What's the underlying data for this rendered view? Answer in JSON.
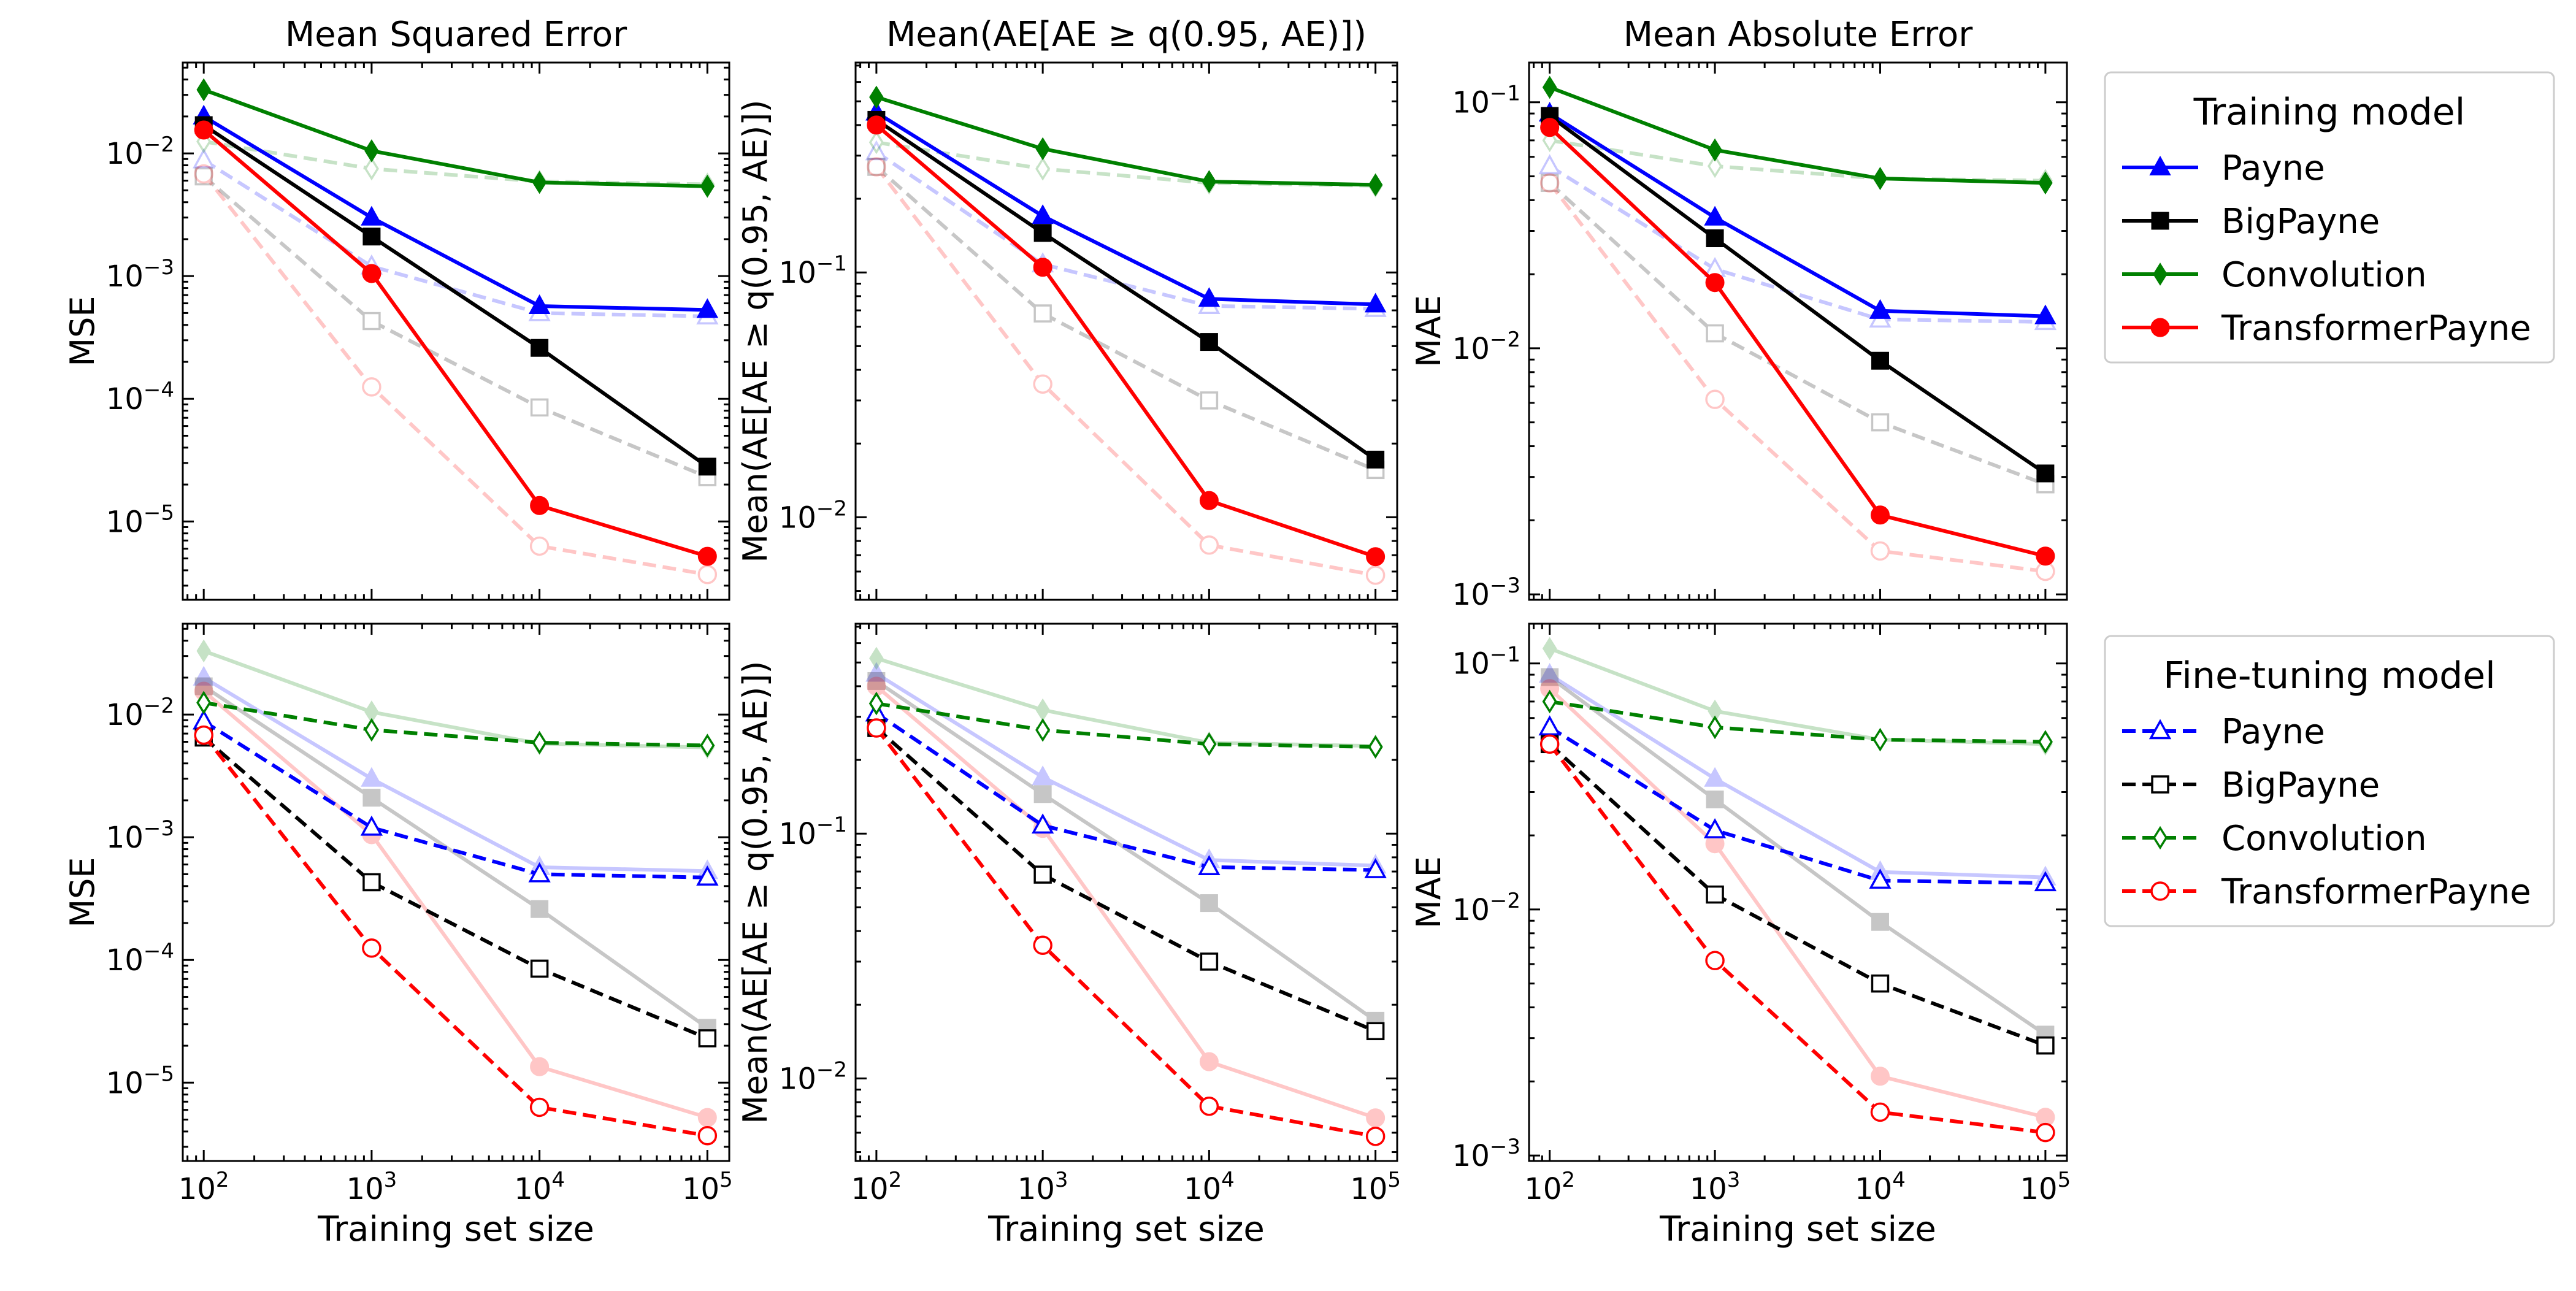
{
  "chart_data": {
    "type": "line",
    "xscale": "log",
    "yscale": "log",
    "x": [
      100,
      1000,
      10000,
      100000
    ],
    "xlim": [
      75,
      135000
    ],
    "xtick_labels": [
      "10^2",
      "10^3",
      "10^4",
      "10^5"
    ],
    "xlabel": "Training set size",
    "colors": {
      "Payne": "#0000ff",
      "BigPayne": "#000000",
      "Convolution": "#008000",
      "TransformerPayne": "#ff0000"
    },
    "markers": {
      "Payne": "triangle",
      "BigPayne": "square",
      "Convolution": "diamond",
      "TransformerPayne": "circle"
    },
    "legends": [
      {
        "title": "Training model",
        "style": "solid-filled",
        "entries": [
          "Payne",
          "BigPayne",
          "Convolution",
          "TransformerPayne"
        ]
      },
      {
        "title": "Fine-tuning model",
        "style": "dashed-open",
        "entries": [
          "Payne",
          "BigPayne",
          "Convolution",
          "TransformerPayne"
        ]
      }
    ],
    "metrics": [
      {
        "title": "Mean Squared Error",
        "ylabel": "MSE",
        "ylim": [
          2.3e-06,
          0.055
        ],
        "yticks": [
          {
            "v": 0.01,
            "label": "10^-2"
          },
          {
            "v": 0.001,
            "label": "10^-3"
          },
          {
            "v": 0.0001,
            "label": "10^-4"
          },
          {
            "v": 1e-05,
            "label": "10^-5"
          }
        ],
        "training": {
          "Payne": [
            0.02,
            0.003,
            0.00057,
            0.00053
          ],
          "BigPayne": [
            0.017,
            0.0021,
            0.00026,
            2.8e-05
          ],
          "Convolution": [
            0.033,
            0.0105,
            0.0058,
            0.0054
          ],
          "TransformerPayne": [
            0.0155,
            0.00105,
            1.35e-05,
            5.2e-06
          ]
        },
        "finetuning": {
          "Payne": [
            0.0088,
            0.0012,
            0.0005,
            0.00047
          ],
          "BigPayne": [
            0.0065,
            0.00043,
            8.5e-05,
            2.3e-05
          ],
          "Convolution": [
            0.0125,
            0.0075,
            0.0059,
            0.0056
          ],
          "TransformerPayne": [
            0.0068,
            0.000125,
            6.3e-06,
            3.7e-06
          ]
        }
      },
      {
        "title": "Mean(AE[AE ≥ q(0.95, AE)])",
        "ylabel": "Mean(AE[AE ≥ q(0.95, AE)])",
        "ylim": [
          0.0046,
          0.72
        ],
        "yticks": [
          {
            "v": 0.1,
            "label": "10^-1"
          },
          {
            "v": 0.01,
            "label": "10^-2"
          }
        ],
        "training": {
          "Payne": [
            0.45,
            0.17,
            0.078,
            0.074
          ],
          "BigPayne": [
            0.42,
            0.145,
            0.052,
            0.0172
          ],
          "Convolution": [
            0.52,
            0.32,
            0.235,
            0.228
          ],
          "TransformerPayne": [
            0.4,
            0.105,
            0.0117,
            0.0069
          ]
        },
        "finetuning": {
          "Payne": [
            0.31,
            0.108,
            0.073,
            0.071
          ],
          "BigPayne": [
            0.27,
            0.068,
            0.03,
            0.0156
          ],
          "Convolution": [
            0.34,
            0.265,
            0.232,
            0.226
          ],
          "TransformerPayne": [
            0.27,
            0.035,
            0.0077,
            0.0058
          ]
        }
      },
      {
        "title": "Mean Absolute Error",
        "ylabel": "MAE",
        "ylim": [
          0.00095,
          0.145
        ],
        "yticks": [
          {
            "v": 0.1,
            "label": "10^-1"
          },
          {
            "v": 0.01,
            "label": "10^-2"
          },
          {
            "v": 0.001,
            "label": "10^-3"
          }
        ],
        "training": {
          "Payne": [
            0.09,
            0.034,
            0.0142,
            0.0135
          ],
          "BigPayne": [
            0.088,
            0.028,
            0.0089,
            0.0031
          ],
          "Convolution": [
            0.115,
            0.064,
            0.049,
            0.047
          ],
          "TransformerPayne": [
            0.079,
            0.0185,
            0.0021,
            0.00143
          ]
        },
        "finetuning": {
          "Payne": [
            0.055,
            0.021,
            0.0131,
            0.0128
          ],
          "BigPayne": [
            0.047,
            0.0115,
            0.005,
            0.0028
          ],
          "Convolution": [
            0.07,
            0.055,
            0.049,
            0.048
          ],
          "TransformerPayne": [
            0.047,
            0.0062,
            0.0015,
            0.00124
          ]
        }
      }
    ]
  }
}
